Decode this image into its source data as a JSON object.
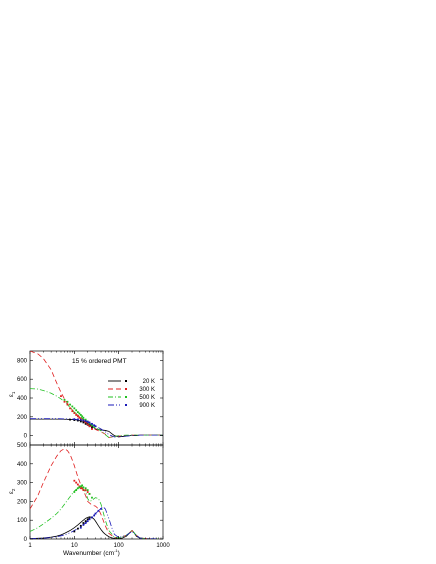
{
  "chart_data": [
    {
      "type": "line",
      "panel": "top",
      "title": "15 % ordered PMT",
      "ylabel_main": "ε",
      "ylabel_sub": "1",
      "xscale": "log",
      "xlim": [
        1,
        1000
      ],
      "ylim": [
        -100,
        900
      ],
      "yticks": [
        0,
        200,
        400,
        600,
        800
      ],
      "legend": {
        "placement": "top-right"
      },
      "series": [
        {
          "name": "20 K",
          "color": "#000000",
          "dash": "solid",
          "x": [
            1,
            2,
            4,
            6,
            8,
            10,
            12,
            15,
            18,
            20,
            22,
            25,
            28,
            30,
            35,
            40,
            50,
            60,
            70,
            80,
            100,
            120,
            150,
            180,
            200,
            220,
            250,
            300,
            400,
            600,
            1000
          ],
          "y": [
            175,
            175,
            175,
            174,
            172,
            170,
            165,
            155,
            140,
            130,
            118,
            100,
            85,
            70,
            65,
            60,
            55,
            45,
            20,
            0,
            -15,
            -10,
            -5,
            0,
            5,
            0,
            0,
            5,
            5,
            5,
            5
          ]
        },
        {
          "name": "300 K",
          "color": "#e02020",
          "dash": "5,3",
          "x": [
            1,
            1.5,
            2,
            3,
            4,
            5,
            6,
            8,
            10,
            12,
            15,
            18,
            20,
            25,
            30,
            40,
            50,
            60,
            80,
            100,
            150,
            200,
            300,
            500,
            1000
          ],
          "y": [
            900,
            870,
            820,
            700,
            560,
            460,
            390,
            300,
            250,
            215,
            175,
            140,
            120,
            90,
            65,
            40,
            15,
            -20,
            -10,
            -5,
            0,
            5,
            5,
            5,
            5
          ]
        },
        {
          "name": "500 K",
          "color": "#20c020",
          "dash": "5,2,1,2",
          "x": [
            1,
            1.5,
            2,
            3,
            4,
            5,
            6,
            8,
            10,
            12,
            15,
            18,
            20,
            25,
            30,
            40,
            50,
            60,
            80,
            100,
            150,
            200,
            300,
            500,
            1000
          ],
          "y": [
            500,
            495,
            480,
            450,
            420,
            390,
            360,
            300,
            250,
            220,
            185,
            160,
            145,
            110,
            85,
            50,
            10,
            -20,
            -10,
            0,
            5,
            5,
            5,
            5,
            5
          ]
        },
        {
          "name": "900 K",
          "color": "#1a1ab8",
          "dash": "6,2,1,2,1,2",
          "x": [
            1,
            2,
            4,
            6,
            8,
            10,
            12,
            15,
            18,
            20,
            25,
            30,
            35,
            40,
            50,
            60,
            80,
            100,
            150,
            200,
            300,
            500,
            1000
          ],
          "y": [
            180,
            180,
            180,
            178,
            176,
            174,
            170,
            162,
            150,
            140,
            118,
            100,
            85,
            70,
            40,
            10,
            -15,
            -10,
            -5,
            0,
            5,
            5,
            5
          ]
        }
      ],
      "scatter": [
        {
          "series": "20 K",
          "color": "#000000",
          "x": [
            8,
            10,
            12,
            14,
            16,
            18,
            20,
            22,
            25
          ],
          "y": [
            170,
            165,
            160,
            150,
            140,
            125,
            115,
            100,
            85
          ]
        },
        {
          "series": "300 K",
          "color": "#e02020",
          "x": [
            5,
            6,
            7,
            8,
            9,
            10,
            11,
            12,
            13,
            14,
            16,
            18,
            20,
            22,
            25
          ],
          "y": [
            420,
            360,
            330,
            290,
            260,
            240,
            220,
            205,
            190,
            180,
            160,
            140,
            120,
            100,
            70
          ]
        },
        {
          "series": "500 K",
          "color": "#20c020",
          "x": [
            6,
            7,
            8,
            9,
            10,
            11,
            12,
            13,
            14,
            15,
            16,
            18,
            20,
            22,
            25,
            28
          ],
          "y": [
            380,
            360,
            330,
            310,
            290,
            270,
            250,
            235,
            220,
            205,
            190,
            170,
            150,
            130,
            110,
            90
          ]
        },
        {
          "series": "900 K",
          "color": "#1a1ab8",
          "x": [
            10,
            12,
            14,
            16,
            18,
            20,
            22,
            25,
            28,
            30
          ],
          "y": [
            175,
            172,
            168,
            162,
            155,
            148,
            140,
            125,
            110,
            100
          ]
        }
      ]
    },
    {
      "type": "line",
      "panel": "bottom",
      "title": "",
      "xlabel_main": "Wavenumber (cm",
      "xlabel_sup": "-1",
      "xlabel_end": ")",
      "ylabel_main": "ε",
      "ylabel_sub": "2",
      "xscale": "log",
      "xlim": [
        1,
        1000
      ],
      "ylim": [
        0,
        500
      ],
      "yticks": [
        0,
        100,
        200,
        300,
        400
      ],
      "ytick_top": "500",
      "xticks": [
        1,
        10,
        100,
        1000
      ],
      "xticklabels": [
        "1",
        "10",
        "100",
        "1000"
      ],
      "series": [
        {
          "name": "20 K",
          "color": "#000000",
          "dash": "solid",
          "x": [
            1,
            2,
            3,
            4,
            5,
            6,
            8,
            10,
            12,
            15,
            18,
            20,
            22,
            25,
            28,
            30,
            35,
            40,
            45,
            50,
            60,
            70,
            80,
            100,
            120,
            150,
            180,
            200,
            220,
            250,
            300,
            400,
            600,
            1000
          ],
          "y": [
            2,
            5,
            10,
            15,
            22,
            30,
            45,
            60,
            75,
            95,
            110,
            115,
            118,
            115,
            105,
            95,
            70,
            50,
            35,
            25,
            12,
            6,
            3,
            2,
            5,
            15,
            35,
            45,
            35,
            15,
            5,
            2,
            1,
            0
          ]
        },
        {
          "name": "300 K",
          "color": "#e02020",
          "dash": "5,3",
          "x": [
            1,
            1.5,
            2,
            3,
            4,
            5,
            6,
            7,
            8,
            9,
            10,
            12,
            15,
            18,
            20,
            25,
            30,
            35,
            40,
            50,
            60,
            80,
            100,
            150,
            200,
            250,
            300,
            500,
            1000
          ],
          "y": [
            160,
            230,
            300,
            390,
            440,
            470,
            480,
            470,
            450,
            420,
            390,
            330,
            270,
            230,
            200,
            180,
            175,
            160,
            130,
            70,
            30,
            8,
            5,
            20,
            45,
            20,
            5,
            1,
            0
          ]
        },
        {
          "name": "500 K",
          "color": "#20c020",
          "dash": "5,2,1,2",
          "x": [
            1,
            1.5,
            2,
            3,
            4,
            5,
            6,
            8,
            10,
            12,
            15,
            18,
            20,
            22,
            25,
            28,
            30,
            35,
            40,
            45,
            50,
            60,
            80,
            100,
            150,
            200,
            250,
            300,
            500,
            1000
          ],
          "y": [
            40,
            60,
            80,
            110,
            135,
            160,
            185,
            225,
            255,
            270,
            275,
            250,
            215,
            200,
            205,
            215,
            220,
            215,
            185,
            140,
            100,
            45,
            10,
            5,
            20,
            45,
            20,
            5,
            1,
            0
          ]
        },
        {
          "name": "900 K",
          "color": "#1a1ab8",
          "dash": "6,2,1,2,1,2",
          "x": [
            1,
            2,
            3,
            4,
            5,
            6,
            8,
            10,
            12,
            15,
            18,
            20,
            25,
            30,
            35,
            40,
            45,
            50,
            60,
            70,
            80,
            100,
            150,
            200,
            250,
            300,
            500,
            1000
          ],
          "y": [
            1,
            4,
            8,
            12,
            17,
            22,
            33,
            45,
            55,
            70,
            85,
            95,
            115,
            135,
            150,
            165,
            170,
            160,
            110,
            60,
            25,
            8,
            20,
            40,
            20,
            5,
            1,
            0
          ]
        }
      ],
      "scatter": [
        {
          "series": "20 K",
          "color": "#000000",
          "x": [
            10,
            12,
            14,
            16,
            18,
            20,
            22,
            25
          ],
          "y": [
            40,
            55,
            70,
            85,
            95,
            105,
            110,
            115
          ]
        },
        {
          "series": "300 K",
          "color": "#e02020",
          "x": [
            10,
            11,
            12,
            13,
            14,
            15,
            16,
            18,
            20,
            22
          ],
          "y": [
            310,
            300,
            290,
            280,
            270,
            270,
            260,
            260,
            250,
            240
          ]
        },
        {
          "series": "500 K",
          "color": "#20c020",
          "x": [
            10,
            11,
            12,
            13,
            14,
            15,
            16,
            18,
            20,
            22,
            25
          ],
          "y": [
            250,
            260,
            270,
            275,
            280,
            285,
            275,
            270,
            260,
            240,
            220
          ]
        },
        {
          "series": "900 K",
          "color": "#1a1ab8",
          "x": [
            14,
            16,
            18,
            20,
            22,
            25,
            28,
            30,
            35,
            40
          ],
          "y": [
            60,
            75,
            85,
            95,
            105,
            115,
            125,
            135,
            150,
            160
          ]
        }
      ]
    }
  ]
}
